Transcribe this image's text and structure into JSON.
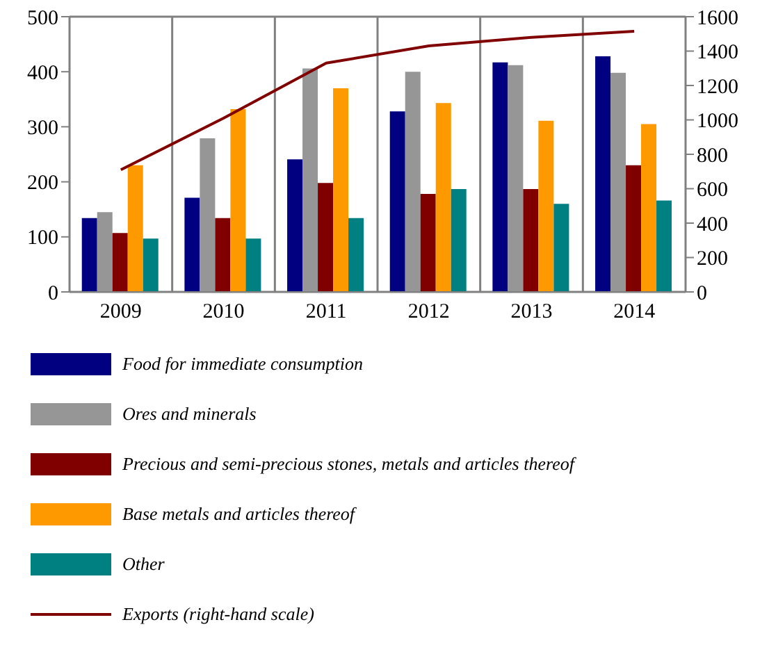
{
  "chart_data": {
    "type": "bar",
    "categories": [
      "2009",
      "2010",
      "2011",
      "2012",
      "2013",
      "2014"
    ],
    "series": [
      {
        "name": "Food for immediate consumption",
        "color": "#000080",
        "values": [
          134,
          171,
          241,
          328,
          417,
          428
        ]
      },
      {
        "name": "Ores and minerals",
        "color": "#969696",
        "values": [
          145,
          279,
          406,
          400,
          412,
          398
        ]
      },
      {
        "name": "Precious and semi-precious stones, metals and articles thereof",
        "color": "#800000",
        "values": [
          107,
          134,
          198,
          178,
          187,
          230
        ]
      },
      {
        "name": "Base metals and articles thereof",
        "color": "#ff9900",
        "values": [
          230,
          332,
          370,
          343,
          311,
          305
        ]
      },
      {
        "name": "Other",
        "color": "#008080",
        "values": [
          97,
          97,
          134,
          187,
          160,
          166
        ]
      },
      {
        "name": "Exports (right-hand scale)",
        "type": "line",
        "axis": "y2",
        "color": "#800000",
        "values": [
          710,
          1010,
          1330,
          1430,
          1480,
          1515
        ]
      }
    ],
    "ylim": [
      0,
      500
    ],
    "yticks": [
      0,
      100,
      200,
      300,
      400,
      500
    ],
    "y2lim": [
      0,
      1600
    ],
    "y2ticks": [
      0,
      200,
      400,
      600,
      800,
      1000,
      1200,
      1400,
      1600
    ],
    "grid": true,
    "legend": "bottom",
    "marker": "none"
  }
}
